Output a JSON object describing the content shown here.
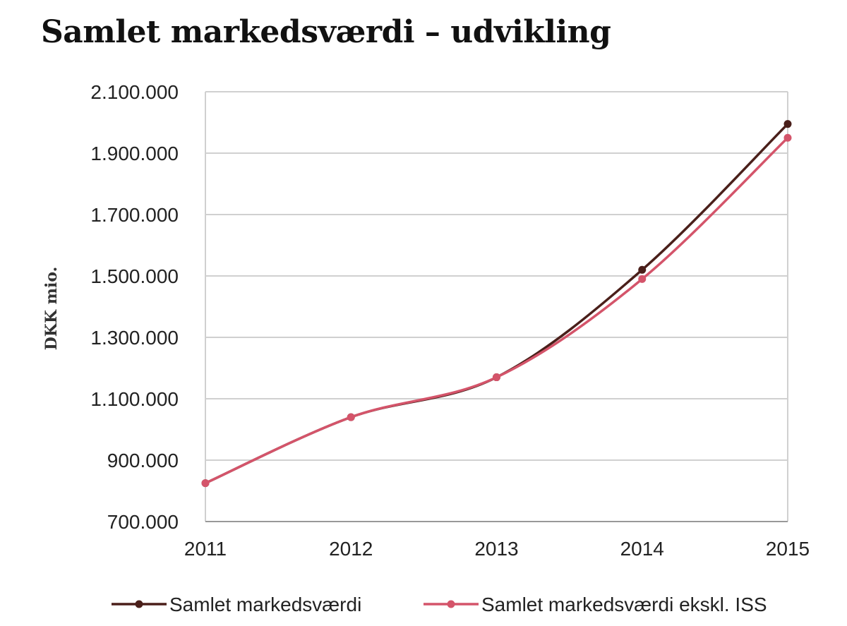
{
  "chart_data": {
    "type": "line",
    "title": "Samlet markedsværdi – udvikling",
    "ylabel": "DKK mio.",
    "xlabel": "",
    "x": [
      "2011",
      "2012",
      "2013",
      "2014",
      "2015"
    ],
    "ylim": [
      700000,
      2100000
    ],
    "yticks": [
      700000,
      900000,
      1100000,
      1300000,
      1500000,
      1700000,
      1900000,
      2100000
    ],
    "ytick_labels": [
      "700.000",
      "900.000",
      "1.100.000",
      "1.300.000",
      "1.500.000",
      "1.700.000",
      "1.900.000",
      "2.100.000"
    ],
    "grid": true,
    "legend_position": "bottom",
    "series": [
      {
        "name": "Samlet markedsværdi",
        "color": "#4a1f1a",
        "values": [
          825000,
          1040000,
          1170000,
          1520000,
          1995000
        ]
      },
      {
        "name": "Samlet markedsværdi ekskl. ISS",
        "color": "#d4546a",
        "values": [
          825000,
          1040000,
          1170000,
          1490000,
          1950000
        ]
      }
    ]
  }
}
